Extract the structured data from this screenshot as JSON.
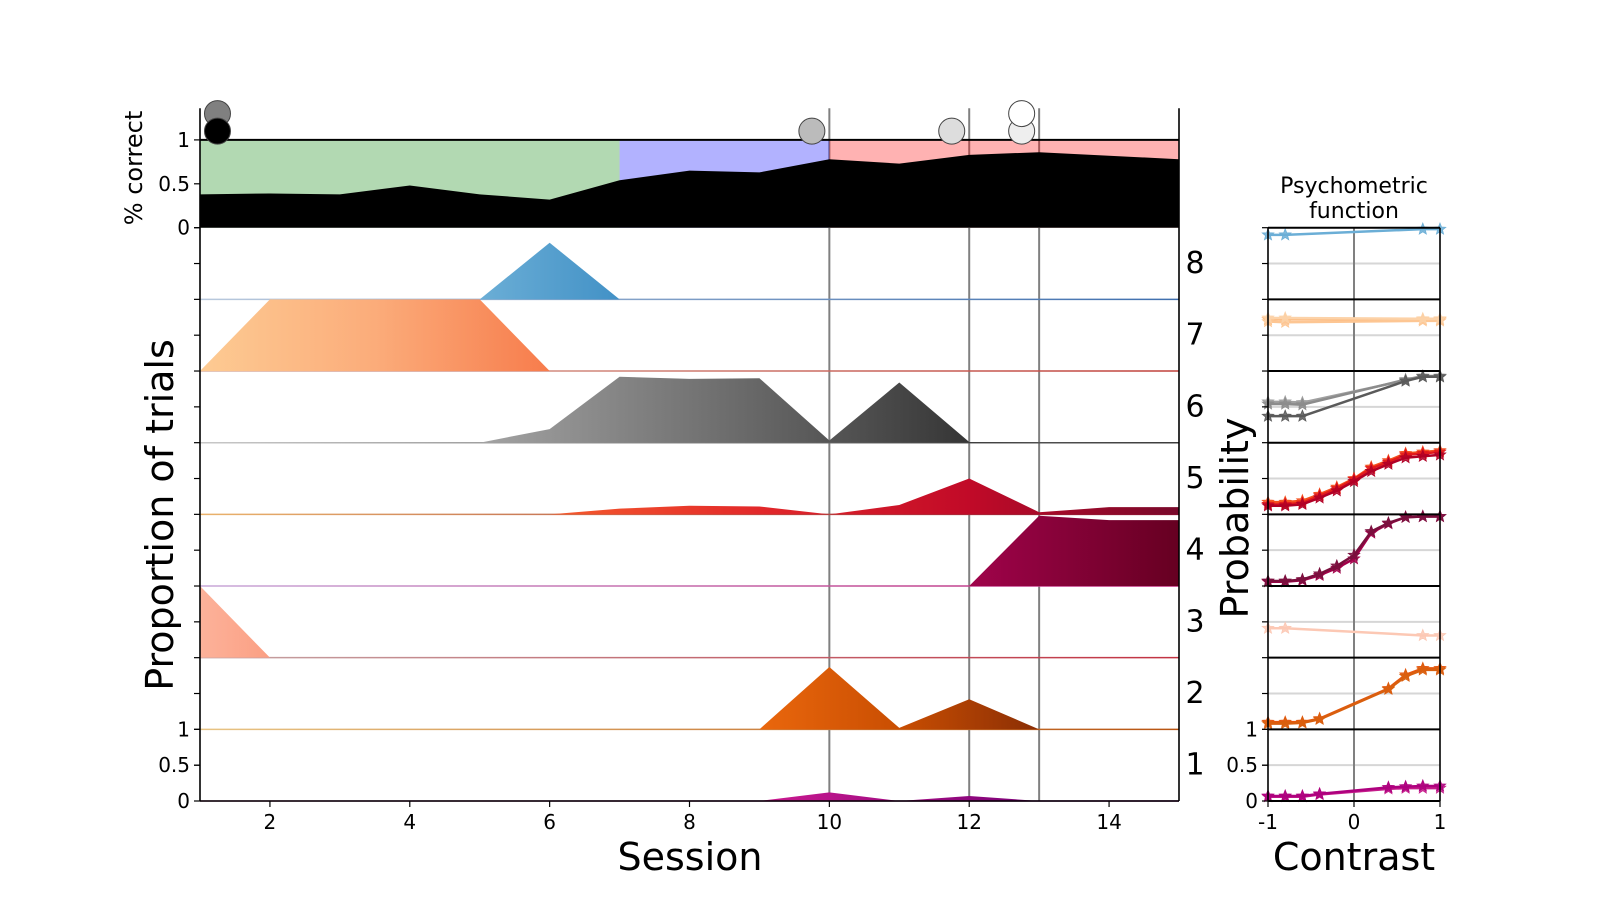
{
  "figure": {
    "background": "#ffffff"
  },
  "chart_data": [
    {
      "type": "area",
      "name": "performance",
      "ylabel": "% correct",
      "xlim": [
        1,
        15
      ],
      "ylim": [
        0,
        1.36
      ],
      "yticks": [
        0,
        0.5,
        1
      ],
      "x": [
        1,
        2,
        3,
        4,
        5,
        6,
        7,
        8,
        9,
        10,
        11,
        12,
        13,
        14,
        15
      ],
      "series": [
        {
          "name": "% correct",
          "color": "#000000",
          "values": [
            0.38,
            0.39,
            0.38,
            0.48,
            0.38,
            0.32,
            0.54,
            0.65,
            0.63,
            0.78,
            0.73,
            0.83,
            0.86,
            0.82,
            0.78
          ]
        }
      ],
      "ceiling": 1,
      "stages": [
        {
          "from": 1,
          "to": 7,
          "color": "rgba(0,128,0,0.3)"
        },
        {
          "from": 7,
          "to": 10,
          "color": "rgba(0,0,255,0.3)"
        },
        {
          "from": 10,
          "to": 15,
          "color": "rgba(255,0,0,0.3)"
        }
      ],
      "markers": [
        {
          "x": 1.25,
          "y": 1.3,
          "color": "#808080"
        },
        {
          "x": 1.25,
          "y": 1.1,
          "color": "#000000"
        },
        {
          "x": 9.75,
          "y": 1.1,
          "color": "#bbbbbb"
        },
        {
          "x": 11.75,
          "y": 1.1,
          "color": "#dddddd"
        },
        {
          "x": 12.75,
          "y": 1.1,
          "color": "#eeeeee"
        },
        {
          "x": 12.75,
          "y": 1.3,
          "color": "#ffffff"
        }
      ],
      "vlines": [
        10,
        12,
        13
      ],
      "vline_color": "#808080"
    },
    {
      "type": "area",
      "name": "state occupancy",
      "xlabel": "Session",
      "ylabel": "Proportion of trials",
      "xlim": [
        1,
        15
      ],
      "xticks": [
        2,
        4,
        6,
        8,
        10,
        12,
        14
      ],
      "yticks": [
        0,
        0.5,
        1
      ],
      "lane_ylim": [
        0,
        1
      ],
      "x": [
        1,
        2,
        3,
        4,
        5,
        6,
        7,
        8,
        9,
        10,
        11,
        12,
        13,
        14,
        15
      ],
      "lanes": [
        {
          "label": "8",
          "values": [
            0,
            0,
            0,
            0,
            0,
            0.79,
            0,
            0,
            0,
            0,
            0,
            0,
            0,
            0,
            0
          ],
          "fill": [
            "#6baed6",
            "#4291c6"
          ],
          "line": [
            "#b9c9dd",
            "#3f6fae"
          ]
        },
        {
          "label": "7",
          "values": [
            0,
            1,
            1,
            1,
            1,
            0,
            0,
            0,
            0,
            0,
            0,
            0,
            0,
            0,
            0
          ],
          "fill": [
            "#fdcb93",
            "#fbac7a",
            "#f77c4c"
          ],
          "line": [
            "#dcb4a4",
            "#c0403a"
          ]
        },
        {
          "label": "6",
          "values": [
            0,
            0,
            0,
            0,
            0,
            0.19,
            0.92,
            0.89,
            0.9,
            0.03,
            0.84,
            0.01,
            0,
            0,
            0
          ],
          "fill": [
            "#a3a3a3",
            "#666666",
            "#252525"
          ],
          "line": [
            "#c8c8c8",
            "#3c3c3c"
          ]
        },
        {
          "label": "5",
          "values": [
            0,
            0,
            0,
            0,
            0,
            0,
            0.08,
            0.12,
            0.11,
            0,
            0.13,
            0.5,
            0.03,
            0.1,
            0.1
          ],
          "fill": [
            "#f55b2d",
            "#e2282a",
            "#c10a28",
            "#78092b"
          ],
          "line": [
            "#eab36c",
            "#8b0f30"
          ]
        },
        {
          "label": "4",
          "values": [
            0,
            0,
            0,
            0,
            0,
            0,
            0,
            0,
            0,
            0,
            0,
            0,
            0.98,
            0.92,
            0.92
          ],
          "fill": [
            "#a0034b",
            "#660021"
          ],
          "line": [
            "#c9a9d9",
            "#c0267a"
          ]
        },
        {
          "label": "3",
          "values": [
            1,
            0,
            0,
            0,
            0,
            0,
            0,
            0,
            0,
            0,
            0,
            0,
            0,
            0,
            0
          ],
          "fill": [
            "#fcb29a",
            "#fb9f83"
          ],
          "line": [
            "#c4a4a4",
            "#c23242"
          ]
        },
        {
          "label": "2",
          "values": [
            0,
            0,
            0,
            0,
            0,
            0,
            0,
            0,
            0,
            0.87,
            0.02,
            0.42,
            0,
            0,
            0
          ],
          "fill": [
            "#ea670d",
            "#c94e02",
            "#8a2e05"
          ],
          "line": [
            "#e8c484",
            "#b85412"
          ]
        },
        {
          "label": "1",
          "values": [
            0,
            0,
            0,
            0,
            0,
            0,
            0,
            0,
            0,
            0.12,
            0,
            0.07,
            0,
            0,
            0
          ],
          "fill": [
            "#cc1a90",
            "#7a0177"
          ],
          "line": [
            "#d87cb8",
            "#7a0177"
          ]
        }
      ]
    },
    {
      "type": "line",
      "name": "psychometric",
      "title_lines": [
        "Psychometric",
        "function"
      ],
      "xlabel": "Contrast",
      "ylabel": "Probability",
      "xlim": [
        -1,
        1
      ],
      "xticks": [
        -1,
        0,
        1
      ],
      "yticks": [
        0,
        0.5,
        1
      ],
      "reference_x": 0,
      "grid_y": 0.5,
      "lanes": [
        {
          "label": "8",
          "series": [
            {
              "color": "#6baed6",
              "x": [
                -1,
                -0.8,
                0.8,
                1
              ],
              "y": [
                0.9,
                0.9,
                0.98,
                0.98
              ]
            }
          ]
        },
        {
          "label": "7",
          "series": [
            {
              "color": "#fdb97d",
              "x": [
                -1,
                -0.8,
                0.8,
                1
              ],
              "y": [
                0.72,
                0.72,
                0.72,
                0.72
              ]
            },
            {
              "color": "#fdc693",
              "x": [
                -1,
                -0.8,
                0.8,
                1
              ],
              "y": [
                0.69,
                0.68,
                0.7,
                0.7
              ]
            },
            {
              "color": "#fcd2a8",
              "x": [
                -1,
                -0.8,
                0.8,
                1
              ],
              "y": [
                0.74,
                0.74,
                0.73,
                0.73
              ]
            }
          ]
        },
        {
          "label": "6",
          "series": [
            {
              "color": "#a0a0a0",
              "x": [
                -1,
                -0.8,
                -0.6,
                0.6,
                0.8,
                1
              ],
              "y": [
                0.57,
                0.57,
                0.56,
                0.87,
                0.92,
                0.92
              ]
            },
            {
              "color": "#8c8c8c",
              "x": [
                -1,
                -0.8,
                -0.6,
                0.6,
                0.8,
                1
              ],
              "y": [
                0.54,
                0.54,
                0.53,
                0.88,
                0.93,
                0.93
              ]
            },
            {
              "color": "#5a5a5a",
              "x": [
                -1,
                -0.8,
                -0.6,
                0.6,
                0.8,
                1
              ],
              "y": [
                0.37,
                0.37,
                0.37,
                0.86,
                0.92,
                0.92
              ]
            }
          ]
        },
        {
          "label": "5",
          "series": [
            {
              "color": "#f4511e",
              "x": [
                -1,
                -0.8,
                -0.6,
                -0.4,
                -0.2,
                0,
                0.2,
                0.4,
                0.6,
                0.8,
                1
              ],
              "y": [
                0.17,
                0.17,
                0.19,
                0.28,
                0.38,
                0.5,
                0.66,
                0.75,
                0.85,
                0.87,
                0.89
              ]
            },
            {
              "color": "#e31a1c",
              "x": [
                -1,
                -0.8,
                -0.6,
                -0.4,
                -0.2,
                0,
                0.2,
                0.4,
                0.6,
                0.8,
                1
              ],
              "y": [
                0.14,
                0.14,
                0.16,
                0.26,
                0.36,
                0.49,
                0.64,
                0.73,
                0.83,
                0.85,
                0.87
              ]
            },
            {
              "color": "#b10026",
              "x": [
                -1,
                -0.8,
                -0.6,
                -0.4,
                -0.2,
                0,
                0.2,
                0.4,
                0.6,
                0.8,
                1
              ],
              "y": [
                0.12,
                0.12,
                0.14,
                0.23,
                0.33,
                0.46,
                0.6,
                0.7,
                0.79,
                0.81,
                0.83
              ]
            }
          ]
        },
        {
          "label": "4",
          "series": [
            {
              "color": "#a3004a",
              "x": [
                -1,
                -0.8,
                -0.6,
                -0.4,
                -0.2,
                0,
                0.2,
                0.4,
                0.6,
                0.8,
                1
              ],
              "y": [
                0.06,
                0.06,
                0.08,
                0.15,
                0.25,
                0.38,
                0.74,
                0.87,
                0.96,
                0.97,
                0.97
              ]
            },
            {
              "color": "#7a0f3d",
              "x": [
                -1,
                -0.8,
                -0.6,
                -0.4,
                -0.2,
                0,
                0.2,
                0.4,
                0.6,
                0.8,
                1
              ],
              "y": [
                0.07,
                0.07,
                0.09,
                0.17,
                0.28,
                0.43,
                0.76,
                0.88,
                0.96,
                0.97,
                0.97
              ]
            }
          ]
        },
        {
          "label": "3",
          "series": [
            {
              "color": "#fcc8b4",
              "x": [
                -1,
                -0.8,
                0.8,
                1
              ],
              "y": [
                0.41,
                0.41,
                0.31,
                0.31
              ]
            }
          ]
        },
        {
          "label": "2",
          "series": [
            {
              "color": "#e6550d",
              "x": [
                -1,
                -0.8,
                -0.6,
                -0.4,
                0.4,
                0.6,
                0.8,
                1
              ],
              "y": [
                0.1,
                0.1,
                0.1,
                0.15,
                0.57,
                0.76,
                0.85,
                0.85
              ]
            },
            {
              "color": "#d95f0e",
              "x": [
                -1,
                -0.8,
                -0.6,
                -0.4,
                0.4,
                0.6,
                0.8,
                1
              ],
              "y": [
                0.08,
                0.08,
                0.09,
                0.14,
                0.56,
                0.74,
                0.83,
                0.83
              ]
            }
          ]
        },
        {
          "label": "1",
          "series": [
            {
              "color": "#c51b8a",
              "x": [
                -1,
                -0.8,
                -0.6,
                -0.4,
                0.4,
                0.6,
                0.8,
                1
              ],
              "y": [
                0.06,
                0.06,
                0.06,
                0.09,
                0.17,
                0.18,
                0.18,
                0.18
              ]
            },
            {
              "color": "#ae017e",
              "x": [
                -1,
                -0.8,
                -0.6,
                -0.4,
                0.4,
                0.6,
                0.8,
                1
              ],
              "y": [
                0.07,
                0.07,
                0.07,
                0.1,
                0.19,
                0.2,
                0.21,
                0.21
              ]
            }
          ]
        }
      ]
    }
  ]
}
